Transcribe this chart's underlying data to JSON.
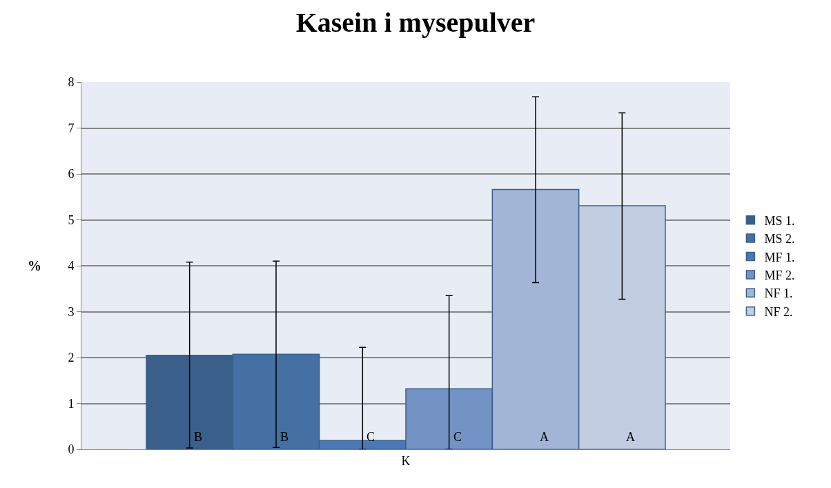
{
  "chart_data": {
    "type": "bar",
    "title": "Kasein i mysepulver",
    "ylabel": "%",
    "categories": [
      "K"
    ],
    "series": [
      {
        "name": "MS 1.",
        "color": "#3a5f8b",
        "values": [
          2.05
        ],
        "errors": [
          [
            0.03,
            4.08
          ]
        ],
        "value_labels": [
          "B"
        ]
      },
      {
        "name": "MS 2.",
        "color": "#4470a3",
        "values": [
          2.07
        ],
        "errors": [
          [
            0.04,
            4.1
          ]
        ],
        "value_labels": [
          "B"
        ]
      },
      {
        "name": "MF 1.",
        "color": "#4a78b4",
        "values": [
          0.19
        ],
        "errors": [
          [
            0,
            2.22
          ]
        ],
        "value_labels": [
          "C"
        ]
      },
      {
        "name": "MF 2.",
        "color": "#7493c5",
        "values": [
          1.32
        ],
        "errors": [
          [
            0,
            3.35
          ]
        ],
        "value_labels": [
          "C"
        ]
      },
      {
        "name": "NF 1.",
        "color": "#a2b5d6",
        "values": [
          5.66
        ],
        "errors": [
          [
            3.63,
            7.68
          ]
        ],
        "value_labels": [
          "A"
        ]
      },
      {
        "name": "NF 2.",
        "color": "#c2cde2",
        "values": [
          5.31
        ],
        "errors": [
          [
            3.27,
            7.33
          ]
        ],
        "value_labels": [
          "A"
        ]
      }
    ],
    "ylim": [
      0,
      8
    ],
    "yticks": [
      0,
      1,
      2,
      3,
      4,
      5,
      6,
      7,
      8
    ],
    "grid": "y",
    "legend": "right"
  }
}
